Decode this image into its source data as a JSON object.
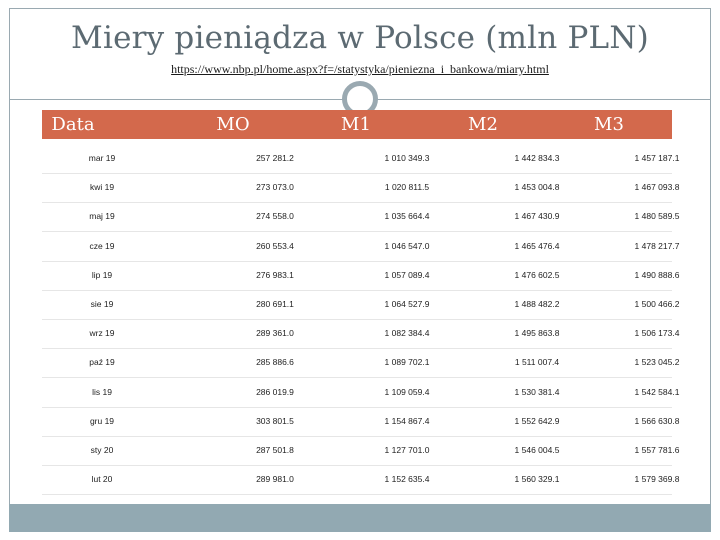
{
  "slide": {
    "title": "Miery pieniądza w Polsce (mln PLN)",
    "source_url": "https://www.nbp.pl/home.aspx?f=/statystyka/pieniezna_i_bankowa/miary.html"
  },
  "table": {
    "headers": [
      "Data",
      "MO",
      "M1",
      "M2",
      "M3"
    ],
    "rows": [
      [
        "mar 19",
        "257 281.2",
        "1 010 349.3",
        "1 442 834.3",
        "1 457 187.1"
      ],
      [
        "kwi 19",
        "273 073.0",
        "1 020 811.5",
        "1 453 004.8",
        "1 467 093.8"
      ],
      [
        "maj 19",
        "274 558.0",
        "1 035 664.4",
        "1 467 430.9",
        "1 480 589.5"
      ],
      [
        "cze 19",
        "260 553.4",
        "1 046 547.0",
        "1 465 476.4",
        "1 478 217.7"
      ],
      [
        "lip 19",
        "276 983.1",
        "1 057 089.4",
        "1 476 602.5",
        "1 490 888.6"
      ],
      [
        "sie 19",
        "280 691.1",
        "1 064 527.9",
        "1 488 482.2",
        "1 500 466.2"
      ],
      [
        "wrz 19",
        "289 361.0",
        "1 082 384.4",
        "1 495 863.8",
        "1 506 173.4"
      ],
      [
        "paź 19",
        "285 886.6",
        "1 089 702.1",
        "1 511 007.4",
        "1 523 045.2"
      ],
      [
        "lis 19",
        "286 019.9",
        "1 109 059.4",
        "1 530 381.4",
        "1 542 584.1"
      ],
      [
        "gru 19",
        "303 801.5",
        "1 154 867.4",
        "1 552 642.9",
        "1 566 630.8"
      ],
      [
        "sty 20",
        "287 501.8",
        "1 127 701.0",
        "1 546 004.5",
        "1 557 781.6"
      ],
      [
        "lut 20",
        "289 981.0",
        "1 152 635.4",
        "1 560 329.1",
        "1 579 369.8"
      ]
    ]
  }
}
